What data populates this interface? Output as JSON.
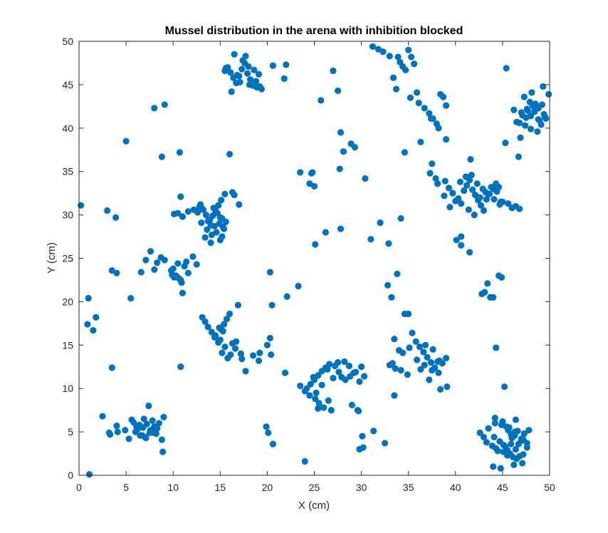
{
  "chart_data": {
    "type": "scatter",
    "title": "Mussel distribution in the arena with inhibition blocked",
    "xlabel": "X (cm)",
    "ylabel": "Y (cm)",
    "xlim": [
      0,
      50
    ],
    "ylim": [
      0,
      50
    ],
    "xticks": [
      0,
      5,
      10,
      15,
      20,
      25,
      30,
      35,
      40,
      45,
      50
    ],
    "yticks": [
      0,
      5,
      10,
      15,
      20,
      25,
      30,
      35,
      40,
      45,
      50
    ],
    "grid": false,
    "marker_color": "#0072BD",
    "series": [
      {
        "x": [
          0.2,
          1.0,
          0.9,
          1.1,
          1.5,
          1.8,
          3.0,
          3.5,
          3.9,
          4.0,
          3.5,
          2.5,
          3.2,
          4.0,
          4.1,
          5.0,
          5.5,
          5.3,
          5.8,
          6.0,
          6.2,
          6.5,
          6.8,
          6.9,
          7.0,
          7.2,
          7.5,
          7.6,
          7.8,
          8.0,
          8.2,
          8.3,
          8.5,
          8.8,
          9.0,
          8.9,
          7.4,
          6.7,
          6.4,
          7.1,
          8.1,
          7.9,
          6.1,
          5.6,
          4.9,
          3.3,
          8.0,
          9.1,
          8.8,
          10.7,
          6.6,
          7.1,
          7.6,
          8.0,
          8.3,
          8.7,
          9.1,
          9.8,
          10.1,
          10.3,
          10.5,
          10.8,
          10.9,
          11.2,
          11.6,
          12.1,
          12.5,
          12.8,
          9.9,
          10.0,
          10.6,
          11.0,
          11.4,
          10.8,
          12.9,
          13.2,
          13.5,
          13.8,
          14.0,
          14.2,
          14.5,
          14.8,
          15.0,
          15.3,
          15.6,
          13.0,
          13.6,
          14.1,
          14.6,
          15.2,
          13.4,
          14.3,
          15.1,
          15.5,
          12.6,
          13.1,
          13.7,
          14.4,
          14.9,
          15.4,
          14.0,
          15.0,
          16.3,
          16.0,
          17.0,
          16.5,
          15.2,
          13.9,
          14.7,
          12.2,
          11.6,
          11.0,
          10.5,
          10.1,
          13.1,
          13.4,
          13.7,
          14.1,
          14.4,
          14.8,
          15.1,
          15.4,
          15.7,
          16.0,
          16.3,
          16.6,
          14.5,
          15.0,
          15.5,
          16.1,
          16.7,
          14.9,
          15.8,
          17.3,
          17.7,
          18.5,
          19.1,
          17.2,
          16.9,
          15.3,
          10.8,
          15.2,
          15.5,
          15.8,
          16.1,
          16.4,
          16.7,
          17.0,
          17.3,
          17.6,
          17.9,
          18.2,
          18.5,
          18.8,
          19.1,
          19.4,
          16.2,
          16.8,
          17.4,
          18.0,
          18.6,
          19.2,
          17.7,
          18.1,
          17.1,
          18.9,
          16.5,
          15.6,
          21.8,
          20.6,
          22.0,
          23.5,
          24.0,
          24.8,
          24.5,
          25.0,
          25.7,
          27.0,
          27.5,
          27.8,
          26.2,
          25.1,
          20.3,
          20.3,
          20.0,
          21.9,
          20.5,
          20.4,
          19.2,
          19.9,
          20.1,
          20.6,
          22.1,
          23.3,
          24.2,
          24.6,
          25.0,
          25.4,
          25.8,
          26.2,
          26.6,
          27.0,
          23.5,
          24.0,
          24.5,
          25.1,
          25.5,
          26.0,
          26.5,
          25.2,
          25.8,
          24.9,
          26.4,
          27.5,
          28.2,
          28.7,
          29.2,
          29.8,
          30.3,
          29.4,
          30.0,
          27.2,
          27.9,
          28.3,
          28.8,
          27.6,
          26.8,
          25.4,
          29.0,
          29.6,
          30.1,
          29.7,
          30.2,
          29.8,
          29.3,
          28.9,
          27.7,
          30.4,
          28.1,
          24.7,
          27.8,
          31.0,
          31.3,
          32.0,
          32.5,
          32.8,
          33.2,
          33.4,
          33.7,
          33.0,
          32.3,
          31.8,
          31.2,
          33.9,
          34.1,
          34.4,
          34.7,
          35.0,
          35.3,
          35.6,
          35.9,
          35.2,
          36.1,
          36.7,
          37.2,
          37.6,
          38.0,
          38.4,
          38.7,
          39.0,
          37.4,
          38.2,
          36.3,
          34.6,
          37.5,
          37.3,
          38.1,
          38.9,
          39.3,
          39.7,
          40.3,
          40.6,
          40.9,
          41.2,
          41.5,
          41.8,
          42.1,
          42.4,
          42.7,
          43.0,
          43.3,
          43.6,
          44.0,
          44.3,
          44.6,
          40.5,
          41.1,
          41.7,
          42.3,
          42.9,
          43.5,
          44.1,
          44.7,
          41.4,
          42.0,
          42.6,
          43.2,
          43.8,
          44.4,
          45.0,
          45.6,
          46.0,
          46.4,
          46.8,
          40.0,
          39.4,
          38.8,
          38.1,
          37.9,
          41.6,
          45.3,
          46.7,
          44.8,
          39.0,
          40.1,
          40.6,
          41.5,
          33.8,
          34.2,
          34.6,
          35.0,
          35.4,
          35.8,
          36.2,
          36.6,
          37.0,
          37.4,
          37.8,
          38.2,
          38.6,
          39.0,
          34.4,
          35.1,
          35.9,
          36.7,
          37.5,
          38.3,
          33.0,
          33.5,
          34.0,
          36.8,
          37.6,
          38.1,
          34.2,
          33.6,
          33.3,
          34.9,
          36.3,
          37.2,
          38.4,
          39.1,
          33.5,
          32.9,
          40.6,
          42.8,
          43.1,
          43.4,
          43.7,
          44.0,
          44.3,
          44.6,
          44.9,
          45.2,
          45.5,
          45.8,
          46.1,
          46.4,
          46.7,
          47.0,
          47.3,
          43.5,
          44.2,
          44.9,
          45.6,
          46.3,
          47.0,
          43.9,
          44.5,
          45.1,
          45.7,
          46.3,
          44.1,
          44.7,
          45.3,
          45.9,
          46.5,
          47.1,
          47.6,
          43.3,
          43.0,
          42.6,
          45.4,
          45.0,
          44.2,
          46.6,
          47.8,
          45.5,
          45.1,
          44.3,
          44.0,
          44.8,
          46.2,
          47.2,
          45.9,
          46.0,
          46.4,
          46.8,
          47.2,
          47.6,
          48.0,
          48.4,
          48.8,
          49.2,
          49.6,
          46.5,
          47.1,
          47.7,
          48.3,
          48.9,
          49.5,
          47.0,
          47.6,
          48.2,
          48.8,
          49.4,
          46.2,
          46.8,
          47.4,
          48.0,
          48.6,
          47.3,
          47.9,
          48.5,
          49.1,
          47.5,
          48.1,
          48.7,
          46.9,
          49.3,
          49.9,
          45.4
        ],
        "y": [
          31.1,
          20.4,
          17.4,
          0.1,
          16.7,
          18.2,
          30.5,
          23.6,
          29.7,
          23.3,
          12.4,
          6.8,
          4.9,
          5.7,
          5.0,
          38.5,
          20.4,
          4.2,
          6.1,
          5.0,
          5.3,
          4.6,
          5.5,
          6.5,
          4.4,
          5.9,
          4.9,
          5.2,
          6.3,
          5.6,
          4.8,
          5.4,
          6.0,
          4.1,
          6.7,
          2.7,
          8.0,
          4.6,
          5.8,
          4.3,
          5.1,
          4.9,
          5.6,
          6.4,
          5.2,
          4.7,
          42.3,
          42.7,
          36.7,
          37.2,
          23.4,
          24.8,
          25.8,
          23.7,
          24.5,
          25.1,
          24.8,
          23.6,
          22.8,
          23.0,
          24.4,
          22.5,
          22.2,
          24.1,
          23.3,
          25.2,
          24.3,
          30.9,
          23.1,
          23.8,
          22.7,
          21.0,
          24.6,
          32.1,
          31.2,
          30.6,
          30.0,
          29.4,
          28.8,
          29.9,
          30.5,
          31.1,
          29.7,
          28.6,
          29.2,
          29.1,
          28.3,
          27.7,
          28.0,
          29.6,
          27.4,
          30.8,
          31.7,
          32.4,
          30.3,
          30.7,
          29.3,
          28.7,
          29.0,
          28.4,
          26.8,
          27.1,
          32.6,
          37.0,
          31.2,
          32.3,
          27.5,
          29.4,
          30.2,
          30.6,
          30.4,
          29.8,
          30.2,
          30.1,
          18.2,
          17.7,
          17.1,
          16.5,
          15.9,
          15.3,
          16.8,
          17.4,
          18.0,
          18.6,
          15.2,
          14.6,
          16.1,
          15.6,
          14.8,
          13.9,
          15.4,
          17.0,
          13.5,
          13.4,
          12.0,
          13.8,
          13.2,
          14.0,
          19.6,
          16.6,
          12.5,
          14.1,
          46.6,
          47.0,
          46.4,
          45.8,
          45.2,
          46.0,
          46.8,
          47.5,
          46.3,
          45.6,
          44.9,
          45.4,
          46.2,
          44.5,
          44.2,
          46.1,
          47.8,
          47.1,
          46.7,
          44.8,
          48.3,
          45.0,
          45.3,
          44.7,
          48.5,
          46.9,
          45.7,
          47.2,
          47.3,
          34.9,
          1.6,
          34.9,
          33.6,
          33.3,
          43.2,
          46.6,
          44.3,
          39.5,
          28.0,
          26.6,
          23.4,
          15.8,
          15.0,
          11.8,
          19.6,
          13.9,
          14.1,
          5.6,
          4.9,
          3.6,
          20.6,
          21.8,
          10.0,
          10.5,
          11.0,
          11.5,
          12.0,
          12.4,
          12.8,
          11.2,
          10.3,
          9.7,
          9.2,
          8.8,
          8.3,
          7.8,
          8.6,
          9.5,
          10.4,
          11.3,
          12.2,
          13.0,
          13.1,
          12.6,
          11.8,
          10.8,
          11.4,
          11.9,
          12.5,
          12.6,
          11.3,
          11.0,
          11.4,
          11.9,
          7.5,
          7.7,
          8.1,
          7.5,
          4.5,
          7.4,
          3.2,
          3.0,
          37.8,
          38.2,
          35.3,
          34.2,
          37.3,
          34.8,
          28.4,
          27.2,
          5.1,
          29.1,
          3.7,
          21.9,
          20.5,
          45.8,
          44.5,
          48.3,
          48.8,
          49.1,
          49.4,
          48.2,
          47.6,
          47.1,
          46.7,
          49.0,
          48.2,
          47.4,
          44.1,
          43.5,
          42.9,
          42.3,
          41.7,
          41.1,
          40.5,
          43.9,
          43.6,
          42.6,
          41.1,
          40.0,
          38.4,
          37.2,
          35.9,
          34.8,
          33.6,
          33.9,
          33.1,
          32.5,
          31.9,
          31.3,
          32.8,
          33.4,
          34.0,
          32.9,
          32.3,
          31.7,
          31.1,
          30.5,
          31.8,
          32.4,
          33.0,
          33.6,
          33.2,
          33.8,
          34.4,
          34.6,
          33.6,
          33.0,
          32.4,
          31.8,
          31.2,
          30.6,
          30.0,
          32.0,
          32.6,
          33.2,
          32.7,
          31.5,
          31.3,
          30.8,
          31.0,
          30.7,
          31.6,
          30.9,
          32.2,
          33.6,
          34.2,
          36.4,
          38.3,
          36.7,
          31.5,
          38.7,
          27.1,
          26.5,
          25.7,
          23.2,
          29.6,
          18.6,
          18.6,
          16.4,
          15.4,
          14.8,
          14.2,
          13.6,
          13.0,
          12.4,
          11.8,
          12.9,
          13.5,
          14.1,
          14.7,
          13.3,
          12.7,
          12.1,
          13.2,
          12.7,
          15.7,
          14.4,
          15.0,
          14.5,
          13.1,
          12.1,
          12.3,
          12.9,
          11.6,
          12.2,
          11.0,
          9.9,
          10.2,
          9.2,
          26.7,
          27.5,
          20.9,
          21.1,
          22.1,
          20.5,
          20.5,
          14.7,
          23.0,
          22.8,
          10.2,
          2.9,
          2.5,
          2.1,
          3.0,
          3.6,
          4.2,
          4.8,
          5.4,
          6.0,
          5.8,
          5.2,
          4.6,
          4.0,
          3.4,
          2.8,
          3.5,
          5.5,
          5.0,
          4.4,
          3.9,
          3.3,
          4.7,
          1.9,
          1.4,
          3.2,
          3.8,
          4.4,
          4.9,
          5.6,
          6.2,
          6.6,
          5.1,
          5.2,
          2.3,
          2.7,
          3.1,
          1.0,
          0.8,
          1.2,
          2.4,
          3.6,
          4.3,
          6.4,
          2.2,
          4.1,
          3.7,
          41.4,
          41.9,
          42.3,
          42.7,
          41.1,
          40.7,
          41.5,
          42.0,
          42.5,
          40.9,
          41.3,
          41.8,
          42.2,
          42.6,
          41.0,
          41.6,
          42.1,
          40.6,
          40.3,
          39.9,
          42.4,
          43.6,
          43.0,
          42.8,
          40.4,
          41.2,
          44.1,
          39.6,
          38.9,
          44.8,
          43.9,
          46.9
        ]
      }
    ]
  }
}
